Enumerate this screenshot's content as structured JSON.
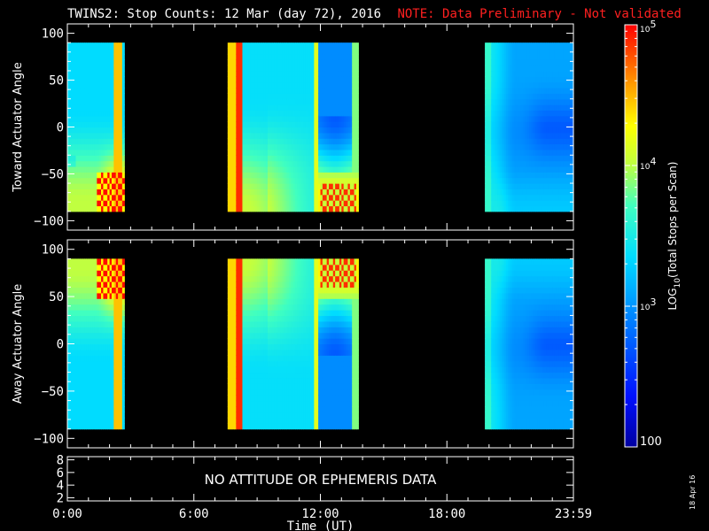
{
  "title": {
    "main": "TWINS2: Stop Counts: 12 Mar (day  72), 2016",
    "note": "NOTE: Data Preliminary - Not validated"
  },
  "date_stamp": "18 Apr 16",
  "chart_data": [
    {
      "type": "heatmap",
      "panel": "top",
      "ylabel": "Toward Actuator Angle",
      "xlabel": "",
      "xlim_hours": [
        0,
        24
      ],
      "ylim": [
        -110,
        110
      ],
      "y_ticks": [
        -100,
        -50,
        0,
        50,
        100
      ],
      "data_y_range": [
        -90,
        90
      ],
      "x_ticks": [
        "0:00",
        "6:00",
        "12:00",
        "18:00",
        "23:59"
      ],
      "x_tick_hours": [
        0,
        6,
        12,
        18,
        24
      ],
      "coverage_intervals_hours": [
        [
          0.0,
          2.7
        ],
        [
          7.6,
          13.8
        ],
        [
          19.8,
          24.0
        ]
      ],
      "data_gaps_hours": [
        [
          2.7,
          7.6
        ],
        [
          13.8,
          19.8
        ]
      ],
      "colorscale": "log",
      "zlim": [
        100,
        100000
      ],
      "value_range_estimate": [
        800,
        100000
      ]
    },
    {
      "type": "heatmap",
      "panel": "middle",
      "ylabel": "Away Actuator Angle",
      "xlabel": "",
      "xlim_hours": [
        0,
        24
      ],
      "ylim": [
        -110,
        110
      ],
      "y_ticks": [
        -100,
        -50,
        0,
        50,
        100
      ],
      "data_y_range": [
        -90,
        90
      ],
      "x_ticks": [
        "0:00",
        "6:00",
        "12:00",
        "18:00",
        "23:59"
      ],
      "x_tick_hours": [
        0,
        6,
        12,
        18,
        24
      ],
      "coverage_intervals_hours": [
        [
          0.0,
          2.7
        ],
        [
          7.6,
          13.8
        ],
        [
          19.8,
          24.0
        ]
      ],
      "data_gaps_hours": [
        [
          2.7,
          7.6
        ],
        [
          13.8,
          19.8
        ]
      ],
      "colorscale": "log",
      "zlim": [
        100,
        100000
      ],
      "value_range_estimate": [
        800,
        100000
      ]
    },
    {
      "type": "line",
      "panel": "bottom",
      "ylabel": "",
      "xlabel": "Time (UT)",
      "ylim": [
        1.5,
        8.5
      ],
      "y_ticks": [
        2,
        4,
        6,
        8
      ],
      "x_ticks": [
        "0:00",
        "6:00",
        "12:00",
        "18:00",
        "23:59"
      ],
      "x_tick_hours": [
        0,
        6,
        12,
        18,
        24
      ],
      "message": "NO ATTITUDE OR EPHEMERIS DATA",
      "series": []
    }
  ],
  "colorbar": {
    "label": "LOG10(Total Stops per Scan)",
    "scale": "log",
    "range": [
      100,
      100000
    ],
    "major_ticks": [
      {
        "value": 100,
        "label": "100"
      },
      {
        "value": 1000,
        "label": "10^3"
      },
      {
        "value": 10000,
        "label": "10^4"
      },
      {
        "value": 100000,
        "label": "10^5"
      }
    ]
  },
  "colors": {
    "background": "#000000",
    "axes": "#ffffff",
    "title": "#ffffff",
    "note": "#ff2020"
  }
}
